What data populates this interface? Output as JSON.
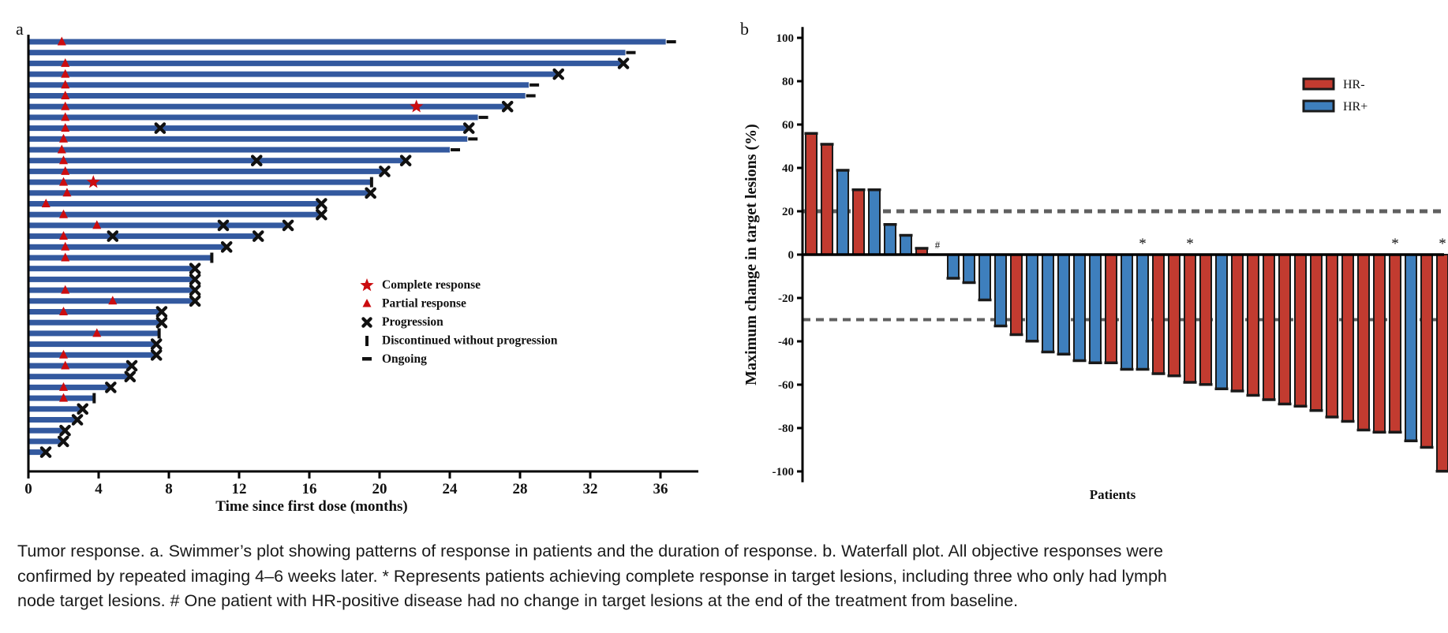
{
  "figure": {
    "panel_a_label": "a",
    "panel_b_label": "b",
    "caption_lines": [
      "Tumor response. a. Swimmer’s plot showing patterns of response in patients and the duration of response. b. Waterfall plot. All objective responses were",
      "confirmed by repeated imaging 4–6 weeks later. * Represents patients achieving complete response in target lesions, including three who only had lymph",
      "node target lesions. # One patient with HR-positive disease had no change in target lesions at the end of the treatment from baseline."
    ]
  },
  "colors": {
    "swimmer_bar": "#33599f",
    "response_marker_red": "#cb0c0f",
    "marker_black": "#111111",
    "waterfall_red": "#c23b30",
    "waterfall_blue": "#3e7fbd",
    "bar_outline": "#1a1a1a",
    "dashed_line": "#606060",
    "axis": "#000000"
  },
  "chart_data": [
    {
      "type": "swimmer",
      "xlabel": "Time since first dose (months)",
      "xticks": [
        0,
        4,
        8,
        12,
        16,
        20,
        24,
        28,
        32,
        36
      ],
      "xlim": [
        0,
        38.2
      ],
      "legend": [
        {
          "marker": "star",
          "label": "Complete response"
        },
        {
          "marker": "triangle",
          "label": "Partial response"
        },
        {
          "marker": "x",
          "label": "Progression"
        },
        {
          "marker": "bar",
          "label": "Discontinued without progression"
        },
        {
          "marker": "dash",
          "label": "Ongoing"
        }
      ],
      "patients": [
        {
          "duration": 36.3,
          "end": "ongoing",
          "pr": 1.9
        },
        {
          "duration": 34.0,
          "end": "ongoing"
        },
        {
          "duration": 33.8,
          "end": "progression",
          "pr": 2.1
        },
        {
          "duration": 30.1,
          "end": "progression",
          "pr": 2.1
        },
        {
          "duration": 28.5,
          "end": "ongoing",
          "pr": 2.1
        },
        {
          "duration": 28.3,
          "end": "ongoing",
          "pr": 2.1
        },
        {
          "duration": 27.2,
          "end": "progression",
          "pr": 2.1,
          "cr": 22.1
        },
        {
          "duration": 25.6,
          "end": "ongoing",
          "pr": 2.1
        },
        {
          "duration": 25.0,
          "end": "progression",
          "pr": 2.1,
          "mid_x": [
            7.5
          ]
        },
        {
          "duration": 25.0,
          "end": "ongoing",
          "pr": 2.0
        },
        {
          "duration": 24.0,
          "end": "ongoing",
          "pr": 1.9
        },
        {
          "duration": 21.4,
          "end": "progression",
          "pr": 2.0,
          "mid_x": [
            13.0
          ]
        },
        {
          "duration": 20.2,
          "end": "progression",
          "pr": 2.1
        },
        {
          "duration": 19.5,
          "end": "discontinued",
          "pr": 2.0,
          "cr": 3.7
        },
        {
          "duration": 19.4,
          "end": "progression",
          "pr": 2.2
        },
        {
          "duration": 16.6,
          "end": "progression",
          "pr": 1.0
        },
        {
          "duration": 16.6,
          "end": "progression",
          "pr": 2.0
        },
        {
          "duration": 14.7,
          "end": "progression",
          "pr": 3.9,
          "mid_x": [
            11.1
          ]
        },
        {
          "duration": 13.0,
          "end": "progression",
          "pr": 2.0,
          "mid_x": [
            4.8
          ]
        },
        {
          "duration": 11.2,
          "end": "progression",
          "pr": 2.1
        },
        {
          "duration": 10.4,
          "end": "discontinued",
          "pr": 2.1
        },
        {
          "duration": 9.4,
          "end": "progression"
        },
        {
          "duration": 9.4,
          "end": "progression"
        },
        {
          "duration": 9.4,
          "end": "progression",
          "pr": 2.1
        },
        {
          "duration": 9.4,
          "end": "progression",
          "pr": 4.8
        },
        {
          "duration": 7.5,
          "end": "progression",
          "pr": 2.0
        },
        {
          "duration": 7.5,
          "end": "progression"
        },
        {
          "duration": 7.4,
          "end": "discontinued",
          "pr": 3.9
        },
        {
          "duration": 7.2,
          "end": "progression"
        },
        {
          "duration": 7.2,
          "end": "progression",
          "pr": 2.0
        },
        {
          "duration": 5.8,
          "end": "progression",
          "pr": 2.1
        },
        {
          "duration": 5.7,
          "end": "progression"
        },
        {
          "duration": 4.6,
          "end": "progression",
          "pr": 2.0
        },
        {
          "duration": 3.7,
          "end": "discontinued",
          "pr": 2.0
        },
        {
          "duration": 3.0,
          "end": "progression"
        },
        {
          "duration": 2.7,
          "end": "progression"
        },
        {
          "duration": 2.0,
          "end": "progression"
        },
        {
          "duration": 1.9,
          "end": "progression"
        },
        {
          "duration": 0.9,
          "end": "progression"
        }
      ]
    },
    {
      "type": "bar",
      "ylabel": "Maximum change in target lesions (%)",
      "xlabel": "Patients",
      "ylim": [
        -100,
        100
      ],
      "yticks": [
        100,
        80,
        60,
        40,
        20,
        0,
        -20,
        -40,
        -60,
        -80,
        -100
      ],
      "reference_lines": [
        20,
        -30
      ],
      "legend": [
        {
          "label": "HR-",
          "group": "HR-"
        },
        {
          "label": "HR+",
          "group": "HR+"
        }
      ],
      "bars": [
        {
          "value": 56,
          "group": "HR-"
        },
        {
          "value": 51,
          "group": "HR-"
        },
        {
          "value": 39,
          "group": "HR+"
        },
        {
          "value": 30,
          "group": "HR-"
        },
        {
          "value": 30,
          "group": "HR+"
        },
        {
          "value": 14,
          "group": "HR+"
        },
        {
          "value": 9,
          "group": "HR+"
        },
        {
          "value": 3,
          "group": "HR-"
        },
        {
          "value": 0,
          "group": "HR+",
          "annotation": "#"
        },
        {
          "value": -11,
          "group": "HR+"
        },
        {
          "value": -13,
          "group": "HR+"
        },
        {
          "value": -21,
          "group": "HR+"
        },
        {
          "value": -33,
          "group": "HR+"
        },
        {
          "value": -37,
          "group": "HR-"
        },
        {
          "value": -40,
          "group": "HR+"
        },
        {
          "value": -45,
          "group": "HR+"
        },
        {
          "value": -46,
          "group": "HR+"
        },
        {
          "value": -49,
          "group": "HR+"
        },
        {
          "value": -50,
          "group": "HR+"
        },
        {
          "value": -50,
          "group": "HR-"
        },
        {
          "value": -53,
          "group": "HR+"
        },
        {
          "value": -53,
          "group": "HR+",
          "annotation": "*"
        },
        {
          "value": -55,
          "group": "HR-"
        },
        {
          "value": -56,
          "group": "HR-"
        },
        {
          "value": -59,
          "group": "HR-",
          "annotation": "*"
        },
        {
          "value": -60,
          "group": "HR-"
        },
        {
          "value": -62,
          "group": "HR+"
        },
        {
          "value": -63,
          "group": "HR-"
        },
        {
          "value": -65,
          "group": "HR-"
        },
        {
          "value": -67,
          "group": "HR-"
        },
        {
          "value": -69,
          "group": "HR-"
        },
        {
          "value": -70,
          "group": "HR-"
        },
        {
          "value": -72,
          "group": "HR-"
        },
        {
          "value": -75,
          "group": "HR-"
        },
        {
          "value": -77,
          "group": "HR-"
        },
        {
          "value": -81,
          "group": "HR-"
        },
        {
          "value": -82,
          "group": "HR-"
        },
        {
          "value": -82,
          "group": "HR-",
          "annotation": "*"
        },
        {
          "value": -86,
          "group": "HR+"
        },
        {
          "value": -89,
          "group": "HR-"
        },
        {
          "value": -100,
          "group": "HR-",
          "annotation": "*"
        }
      ]
    }
  ]
}
